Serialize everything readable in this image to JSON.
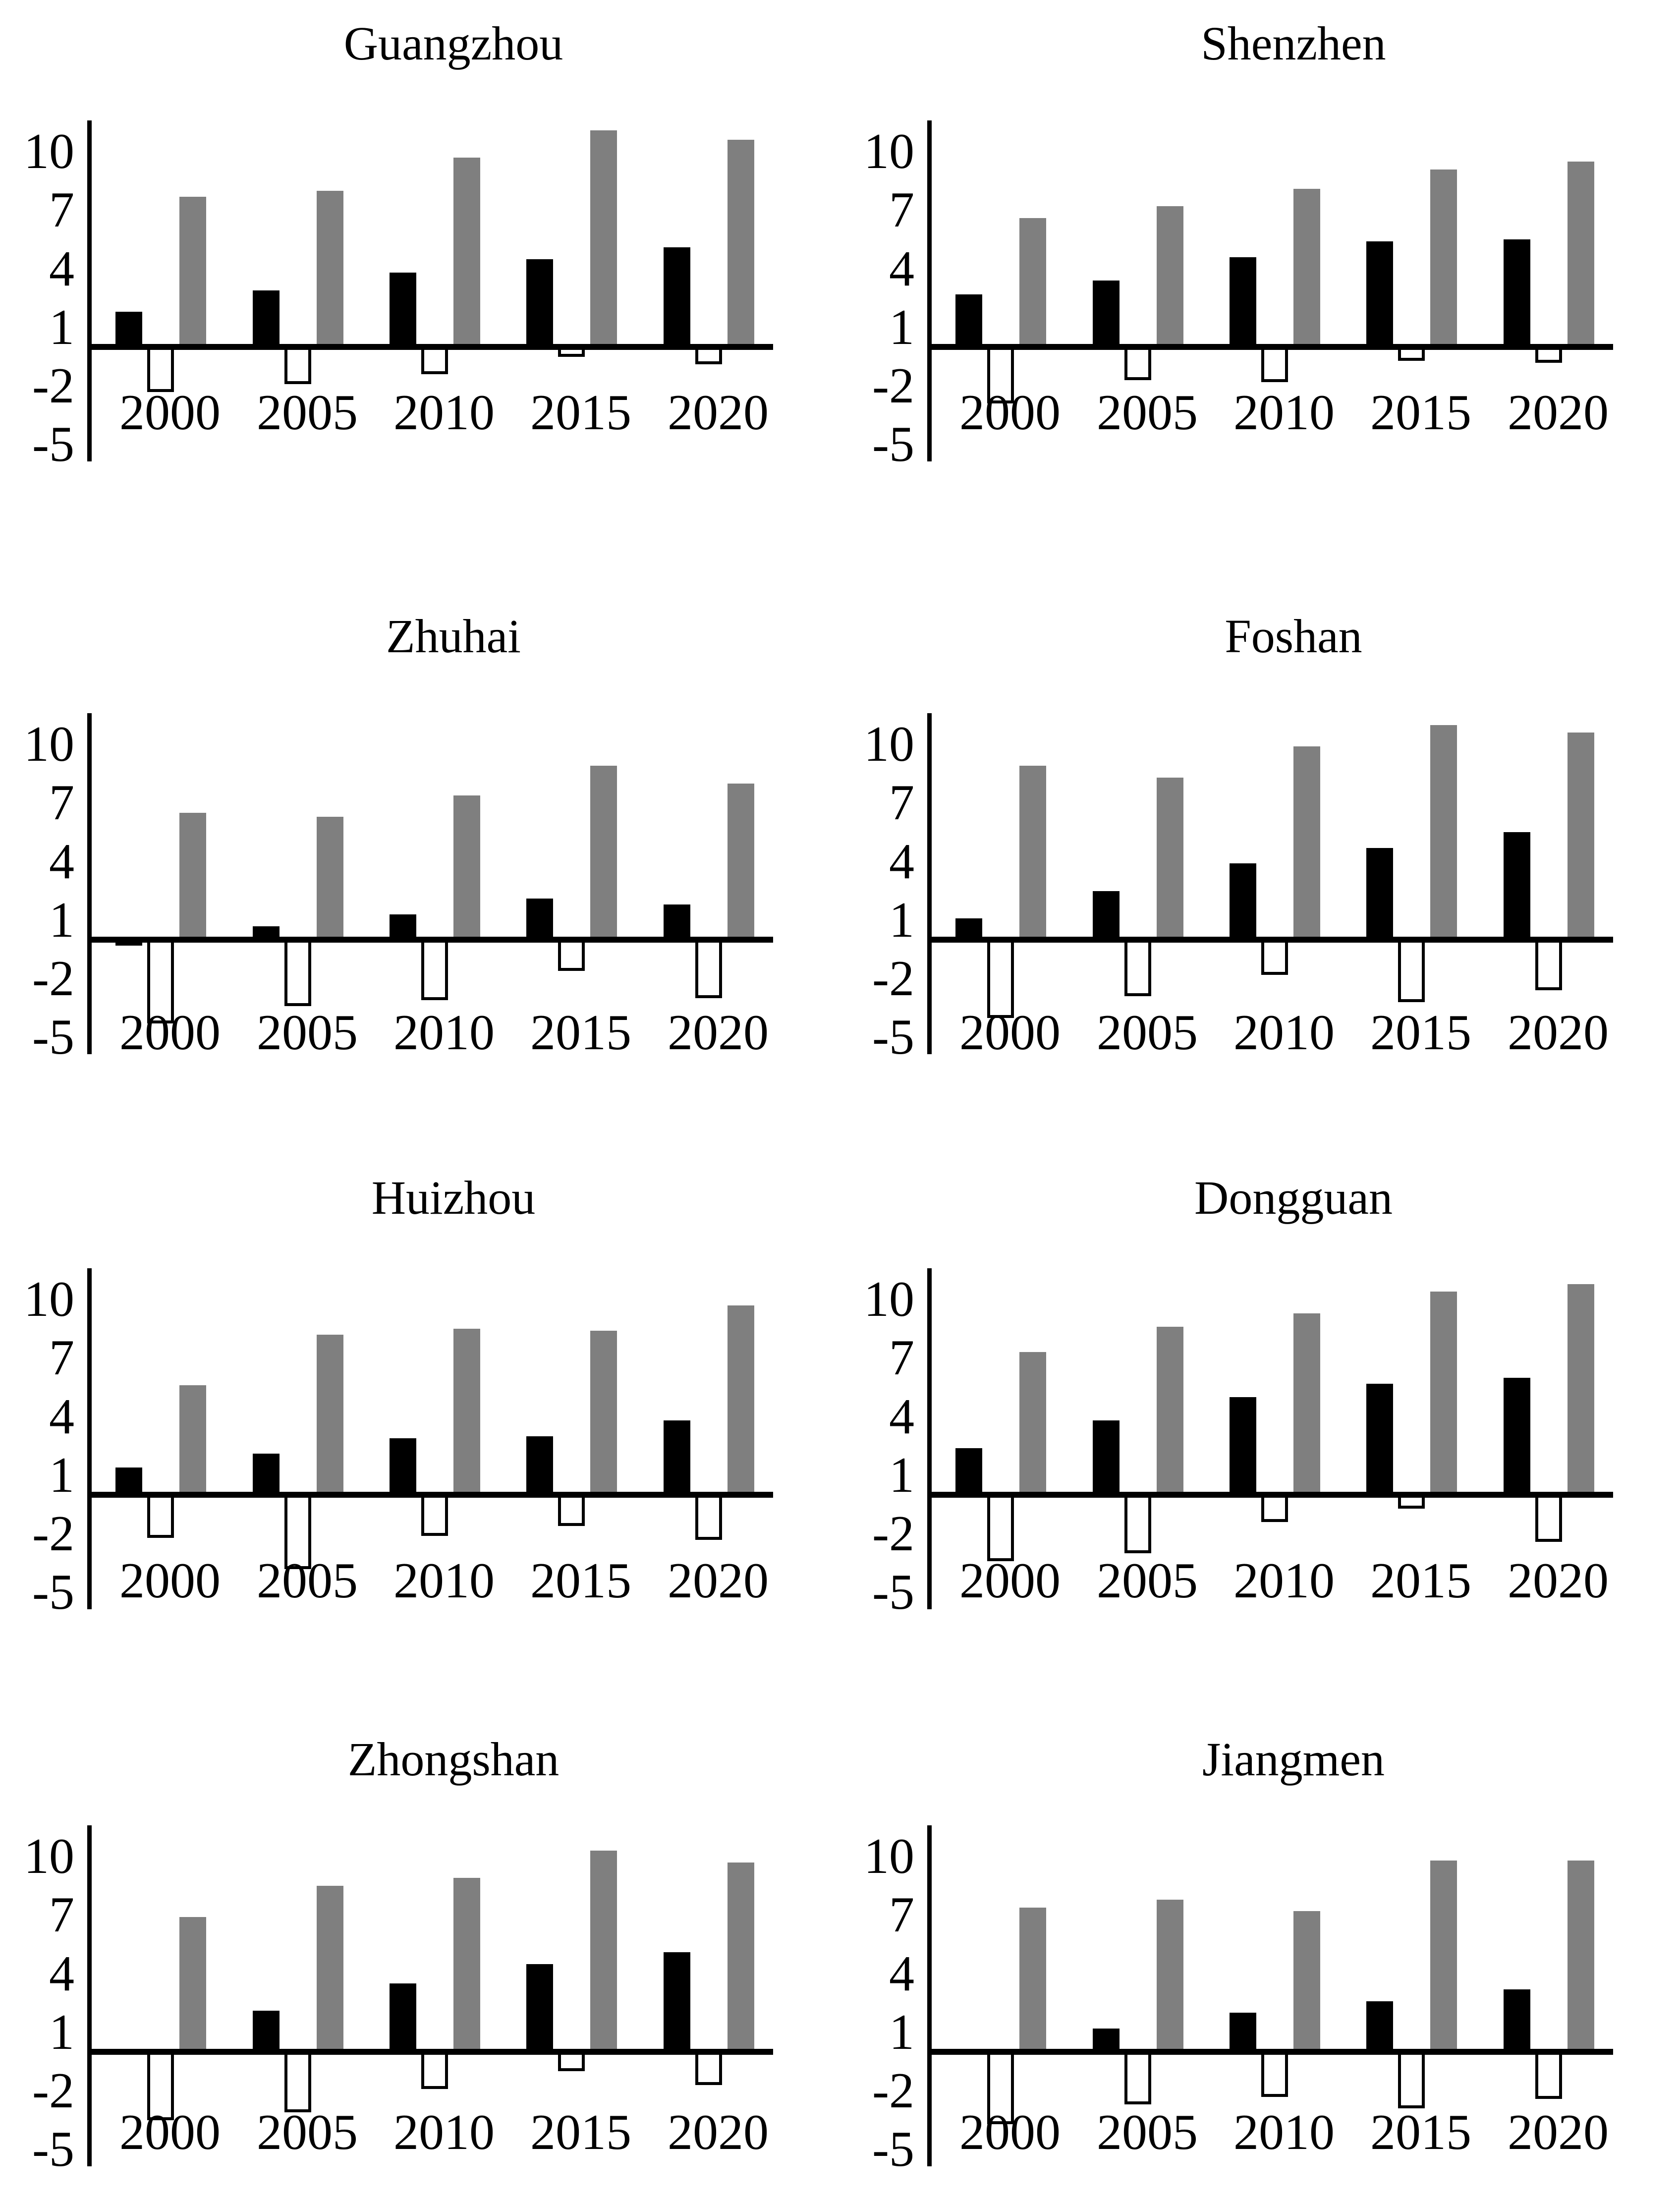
{
  "chart_data": {
    "type": "bar",
    "layout": "small-multiples 2 columns x 4 rows, shared axes",
    "categories": [
      "2000",
      "2005",
      "2010",
      "2015",
      "2020"
    ],
    "y_ticks": [
      "10",
      "7",
      "4",
      "1",
      "-2",
      "-5"
    ],
    "ylim": [
      -5.4,
      11.6
    ],
    "grid": "off",
    "legend": "none",
    "series_names": [
      "black-filled-bar",
      "white-outlined-bar",
      "gray-filled-bar"
    ],
    "charts": [
      {
        "title": "Guangzhou",
        "series": [
          {
            "name": "black",
            "values": [
              1.8,
              2.9,
              3.8,
              4.5,
              5.1
            ]
          },
          {
            "name": "white",
            "values": [
              -2.3,
              -1.9,
              -1.4,
              -0.5,
              -0.9
            ]
          },
          {
            "name": "gray",
            "values": [
              7.7,
              8.0,
              9.7,
              11.1,
              10.6
            ]
          }
        ]
      },
      {
        "title": "Shenzhen",
        "series": [
          {
            "name": "black",
            "values": [
              2.7,
              3.4,
              4.6,
              5.4,
              5.5
            ]
          },
          {
            "name": "white",
            "values": [
              -2.9,
              -1.7,
              -1.8,
              -0.7,
              -0.8
            ]
          },
          {
            "name": "gray",
            "values": [
              6.6,
              7.2,
              8.1,
              9.1,
              9.5
            ]
          }
        ]
      },
      {
        "title": "Zhuhai",
        "series": [
          {
            "name": "black",
            "values": [
              -0.3,
              0.7,
              1.3,
              2.1,
              1.8
            ]
          },
          {
            "name": "white",
            "values": [
              -4.3,
              -3.4,
              -3.1,
              -1.6,
              -3.0
            ]
          },
          {
            "name": "gray",
            "values": [
              6.5,
              6.3,
              7.4,
              8.9,
              8.0
            ]
          }
        ]
      },
      {
        "title": "Foshan",
        "series": [
          {
            "name": "black",
            "values": [
              1.1,
              2.5,
              3.9,
              4.7,
              5.5
            ]
          },
          {
            "name": "white",
            "values": [
              -4.0,
              -2.9,
              -1.8,
              -3.2,
              -2.6
            ]
          },
          {
            "name": "gray",
            "values": [
              8.9,
              8.3,
              9.9,
              11.0,
              10.6
            ]
          }
        ]
      },
      {
        "title": "Huizhou",
        "series": [
          {
            "name": "black",
            "values": [
              1.4,
              2.1,
              2.9,
              3.0,
              3.8
            ]
          },
          {
            "name": "white",
            "values": [
              -2.2,
              -3.8,
              -2.1,
              -1.6,
              -2.3
            ]
          },
          {
            "name": "gray",
            "values": [
              5.6,
              8.2,
              8.5,
              8.4,
              9.7
            ]
          }
        ]
      },
      {
        "title": "Dongguan",
        "series": [
          {
            "name": "black",
            "values": [
              2.4,
              3.8,
              5.0,
              5.7,
              6.0
            ]
          },
          {
            "name": "white",
            "values": [
              -3.4,
              -3.0,
              -1.4,
              -0.7,
              -2.4
            ]
          },
          {
            "name": "gray",
            "values": [
              7.3,
              8.6,
              9.3,
              10.4,
              10.8
            ]
          }
        ]
      },
      {
        "title": "Zhongshan",
        "series": [
          {
            "name": "black",
            "values": [
              0,
              2.1,
              3.5,
              4.5,
              5.1
            ]
          },
          {
            "name": "white",
            "values": [
              -3.5,
              -3.1,
              -1.9,
              -1.0,
              -1.7
            ]
          },
          {
            "name": "gray",
            "values": [
              6.9,
              8.5,
              8.9,
              10.3,
              9.7
            ]
          }
        ]
      },
      {
        "title": "Jiangmen",
        "series": [
          {
            "name": "black",
            "values": [
              0,
              1.2,
              2.0,
              2.6,
              3.2
            ]
          },
          {
            "name": "white",
            "values": [
              -3.7,
              -2.7,
              -2.3,
              -2.9,
              -2.4
            ]
          },
          {
            "name": "gray",
            "values": [
              7.4,
              7.8,
              7.2,
              9.8,
              9.8
            ]
          }
        ]
      }
    ]
  },
  "colors": {
    "bar_black": "#000000",
    "bar_white_fill": "#ffffff",
    "bar_white_outline": "#000000",
    "bar_gray": "#7f7f7f",
    "axis": "#000000",
    "background": "#ffffff",
    "text": "#000000"
  }
}
